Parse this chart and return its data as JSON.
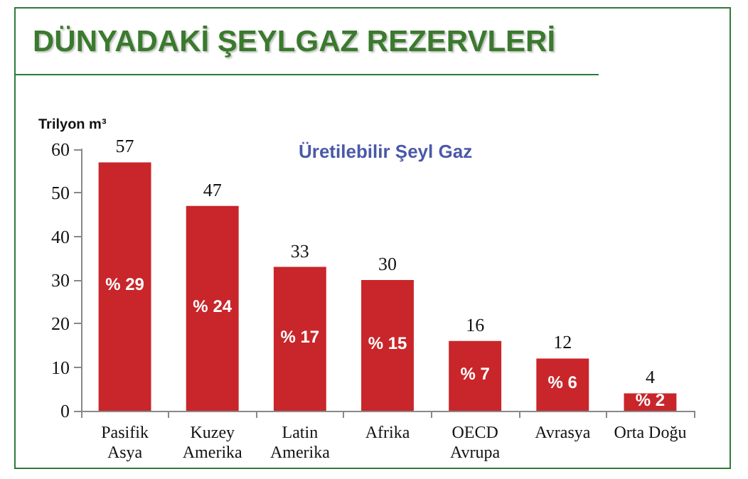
{
  "chart_data": {
    "type": "bar",
    "title": "DÜNYADAKİ ŞEYLGAZ REZERVLERİ",
    "subtitle": "Üretilebilir Şeyl Gaz",
    "ylabel": "Trilyon m³",
    "categories": [
      "Pasifik\nAsya",
      "Kuzey\nAmerika",
      "Latin\nAmerika",
      "Afrika",
      "OECD\nAvrupa",
      "Avrasya",
      "Orta Doğu"
    ],
    "values": [
      57,
      47,
      33,
      30,
      16,
      12,
      4
    ],
    "color": "#c8262a",
    "data_labels": true,
    "ylim": [
      0,
      60
    ],
    "yticks": [
      0,
      10,
      20,
      30,
      40,
      50,
      60
    ],
    "grid": false,
    "annotations": [
      "% 29",
      "% 24",
      "% 17",
      "% 15",
      "% 7",
      "% 6",
      "% 2"
    ]
  }
}
